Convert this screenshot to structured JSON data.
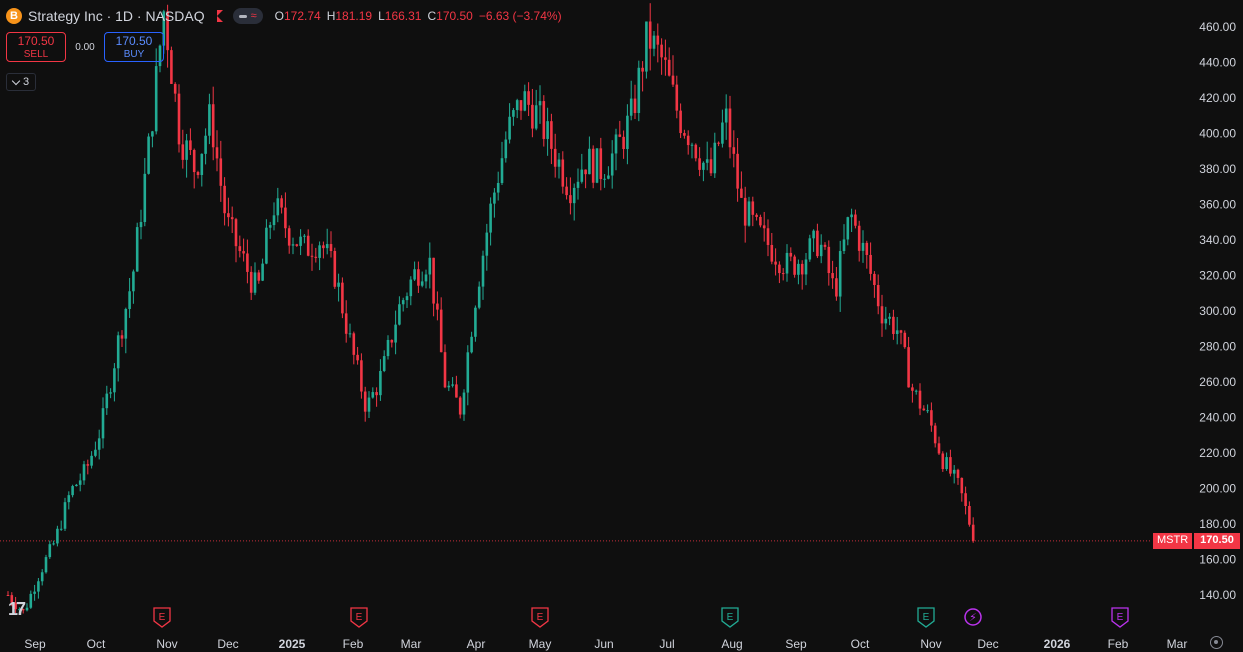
{
  "header": {
    "logo_glyph": "B",
    "title": "Strategy Inc · 1D · NASDAQ",
    "ohlc": [
      {
        "k": "O",
        "v": "172.74"
      },
      {
        "k": "H",
        "v": "181.19"
      },
      {
        "k": "L",
        "v": "166.31"
      },
      {
        "k": "C",
        "v": "170.50"
      }
    ],
    "change": "−6.63 (−3.74%)",
    "pill_wave": "≈"
  },
  "trade": {
    "sell_price": "170.50",
    "sell_label": "SELL",
    "spread": "0.00",
    "buy_price": "170.50",
    "buy_label": "BUY"
  },
  "indicators": {
    "count": "3"
  },
  "price_tag": {
    "symbol": "MSTR",
    "value": "170.50"
  },
  "tv_logo": "17",
  "colors": {
    "up": "#22ab94",
    "down": "#f23645",
    "bg": "#0f0f0f",
    "text": "#d1d4dc",
    "event": "#f23645",
    "event_green": "#22ab94",
    "event_purple": "#bb33ee"
  },
  "chart_data": {
    "type": "candlestick",
    "last_price": 170.5,
    "ylim": [
      130,
      470
    ],
    "y_ticks": [
      140,
      160,
      180,
      200,
      220,
      240,
      260,
      280,
      300,
      320,
      340,
      360,
      380,
      400,
      420,
      440,
      460
    ],
    "x_ticks": [
      "Sep",
      "Oct",
      "Nov",
      "Dec",
      "2025",
      "Feb",
      "Mar",
      "Apr",
      "May",
      "Jun",
      "Jul",
      "Aug",
      "Sep",
      "Oct",
      "Nov",
      "Dec",
      "2026",
      "Feb",
      "Mar"
    ],
    "events": [
      {
        "type": "E",
        "color": "red",
        "near": "Nov"
      },
      {
        "type": "E",
        "color": "red",
        "near": "Feb"
      },
      {
        "type": "E",
        "color": "red",
        "near": "May"
      },
      {
        "type": "E",
        "color": "green",
        "near": "Aug"
      },
      {
        "type": "E",
        "color": "green",
        "near": "Nov"
      },
      {
        "type": "flash",
        "color": "purple",
        "near": "Nov"
      },
      {
        "type": "E",
        "color": "purple",
        "near": "Feb"
      }
    ],
    "close_path": [
      [
        "Sep",
        140
      ],
      [
        "Sep",
        130
      ],
      [
        "Oct",
        152
      ],
      [
        "Oct",
        170
      ],
      [
        "Oct",
        198
      ],
      [
        "Nov",
        210
      ],
      [
        "Nov",
        235
      ],
      [
        "Nov",
        280
      ],
      [
        "Nov",
        320
      ],
      [
        "Nov",
        390
      ],
      [
        "Dec",
        470
      ],
      [
        "Dec",
        400
      ],
      [
        "Dec",
        380
      ],
      [
        "Dec",
        410
      ],
      [
        "Dec",
        350
      ],
      [
        "2025",
        330
      ],
      [
        "2025",
        310
      ],
      [
        "2025",
        360
      ],
      [
        "Feb",
        345
      ],
      [
        "Feb",
        335
      ],
      [
        "Feb",
        340
      ],
      [
        "Feb",
        320
      ],
      [
        "Mar",
        280
      ],
      [
        "Mar",
        245
      ],
      [
        "Mar",
        265
      ],
      [
        "Apr",
        300
      ],
      [
        "Apr",
        320
      ],
      [
        "Apr",
        330
      ],
      [
        "Apr",
        260
      ],
      [
        "Apr",
        245
      ],
      [
        "Apr",
        310
      ],
      [
        "May",
        360
      ],
      [
        "May",
        400
      ],
      [
        "May",
        420
      ],
      [
        "May",
        410
      ],
      [
        "Jun",
        390
      ],
      [
        "Jun",
        370
      ],
      [
        "Jun",
        385
      ],
      [
        "Jun",
        380
      ],
      [
        "Jul",
        390
      ],
      [
        "Jul",
        410
      ],
      [
        "Jul",
        455
      ],
      [
        "Jul",
        440
      ],
      [
        "Aug",
        410
      ],
      [
        "Aug",
        395
      ],
      [
        "Aug",
        375
      ],
      [
        "Aug",
        410
      ],
      [
        "Sep",
        360
      ],
      [
        "Sep",
        345
      ],
      [
        "Sep",
        335
      ],
      [
        "Sep",
        325
      ],
      [
        "Sep",
        330
      ],
      [
        "Oct",
        340
      ],
      [
        "Oct",
        310
      ],
      [
        "Oct",
        355
      ],
      [
        "Oct",
        330
      ],
      [
        "Oct",
        300
      ],
      [
        "Nov",
        290
      ],
      [
        "Nov",
        255
      ],
      [
        "Nov",
        240
      ],
      [
        "Nov",
        215
      ],
      [
        "Nov",
        200
      ],
      [
        "Nov",
        170.5
      ]
    ]
  }
}
